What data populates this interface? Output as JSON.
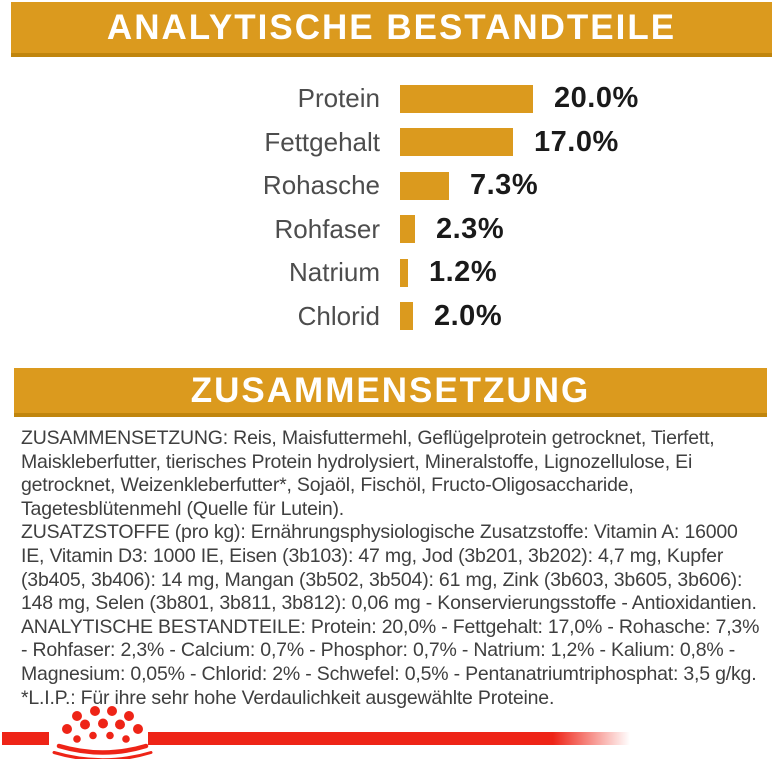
{
  "colors": {
    "gold": "#DB9A1E",
    "gold_dark": "#C0850D",
    "heading_text": "#FFFFFF",
    "label_gray": "#4D4D4D",
    "value_black": "#1A1A1A",
    "body_text": "#3F3F3F",
    "logo_red": "#EE2417"
  },
  "banners": {
    "analytical": "ANALYTISCHE BESTANDTEILE",
    "composition": "ZUSAMMENSETZUNG"
  },
  "chart_data": {
    "type": "bar",
    "orientation": "horizontal",
    "title": "ANALYTISCHE BESTANDTEILE",
    "categories": [
      "Protein",
      "Fettgehalt",
      "Rohasche",
      "Rohfaser",
      "Natrium",
      "Chlorid"
    ],
    "values": [
      20.0,
      17.0,
      7.3,
      2.3,
      1.2,
      2.0
    ],
    "value_labels": [
      "20.0%",
      "17.0%",
      "7.3%",
      "2.3%",
      "1.2%",
      "2.0%"
    ],
    "unit": "%",
    "bar_color": "#DB9A1E",
    "xlim": [
      0,
      22
    ],
    "grid": false,
    "value_label_position": "right-of-bar"
  },
  "composition": {
    "paragraphs": [
      "ZUSAMMENSETZUNG: Reis, Maisfuttermehl, Geflügelprotein getrocknet, Tierfett, Maiskleberfutter, tierisches Protein hydrolysiert, Mineralstoffe, Lignozellulose, Ei getrocknet, Weizenkleberfutter*, Sojaöl, Fischöl, Fructo-Oligosaccharide, Tagetesblütenmehl (Quelle für Lutein).",
      "ZUSATZSTOFFE (pro kg): Ernährungsphysiologische Zusatzstoffe: Vitamin A: 16000 IE, Vitamin D3: 1000 IE, Eisen (3b103): 47 mg, Jod (3b201, 3b202): 4,7 mg, Kupfer (3b405, 3b406): 14 mg, Mangan (3b502, 3b504): 61 mg, Zink (3b603, 3b605, 3b606): 148 mg, Selen (3b801, 3b811, 3b812): 0,06 mg - Konservierungsstoffe - Antioxidantien.",
      "ANALYTISCHE BESTANDTEILE: Protein: 20,0% - Fettgehalt: 17,0% - Rohasche: 7,3% - Rohfaser: 2,3% - Calcium: 0,7% - Phosphor: 0,7% - Natrium: 1,2% - Kalium: 0,8% - Magnesium: 0,05% - Chlorid: 2% - Schwefel: 0,5% - Pentanatriumtriphosphat: 3,5 g/kg."
    ],
    "footnote": "*L.I.P.: Für ihre sehr hohe Verdaulichkeit ausgewählte Proteine."
  },
  "logo": {
    "icon": "royal-canin-crown-icon",
    "color": "#EE2417"
  }
}
